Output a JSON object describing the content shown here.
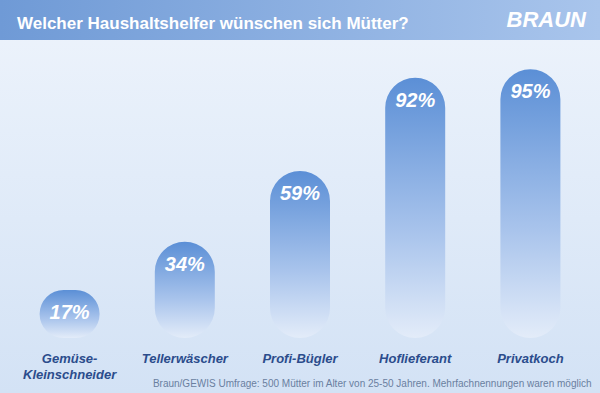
{
  "chart_data": {
    "type": "bar",
    "title": "Welcher Haushaltshelfer wünschen sich Mütter?",
    "brand": "BRAUN",
    "source": "Braun/GEWIS Umfrage: 500 Mütter im Alter von 25-50 Jahren. Mehrfachnennungen waren möglich",
    "categories": [
      "Gemüse-\nKleinschneider",
      "Tellerwäscher",
      "Profi-Bügler",
      "Hoflieferant",
      "Privatkoch"
    ],
    "values": [
      17,
      34,
      59,
      92,
      95
    ],
    "value_labels": [
      "17%",
      "34%",
      "59%",
      "92%",
      "95%"
    ],
    "data_labels": true,
    "color": "#5b8fd6",
    "ylim": [
      0,
      100
    ],
    "yticks": [
      0,
      100
    ],
    "grid": false,
    "tick_labels": "x"
  }
}
